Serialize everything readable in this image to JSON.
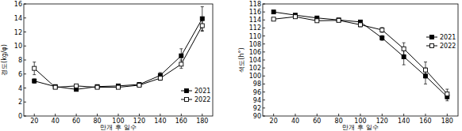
{
  "chart_data": [
    {
      "type": "line",
      "x_label": "만개 후 일수",
      "y_label": "경도(kg/φ)",
      "x": [
        20,
        40,
        60,
        80,
        100,
        120,
        140,
        160,
        180
      ],
      "xlim": [
        10,
        190
      ],
      "xticks": [
        20,
        40,
        60,
        80,
        100,
        120,
        140,
        160,
        180
      ],
      "ylim": [
        0,
        16
      ],
      "yticks": [
        0,
        2,
        4,
        6,
        8,
        10,
        12,
        14,
        16
      ],
      "legend": "lower right",
      "series": [
        {
          "name": "2021",
          "color": "#000000",
          "marker": "square",
          "line_style": "solid",
          "values": [
            5.0,
            4.2,
            3.8,
            4.2,
            4.3,
            4.5,
            5.8,
            8.6,
            13.9
          ],
          "errors": [
            0.3,
            0.2,
            0.2,
            0.2,
            0.2,
            0.2,
            0.4,
            1.0,
            1.7
          ]
        },
        {
          "name": "2022",
          "color": "#000000",
          "marker": "open_square",
          "line_style": "solid",
          "values": [
            6.8,
            4.1,
            4.3,
            4.1,
            4.1,
            4.4,
            5.4,
            7.4,
            12.9
          ],
          "errors": [
            0.9,
            0.2,
            0.2,
            0.2,
            0.2,
            0.2,
            0.3,
            0.6,
            0.8
          ]
        }
      ]
    },
    {
      "type": "line",
      "x_label": "만개 후 일수",
      "y_label": "색도(h°)",
      "x": [
        20,
        40,
        60,
        80,
        100,
        120,
        140,
        160,
        180
      ],
      "xlim": [
        10,
        190
      ],
      "xticks": [
        20,
        40,
        60,
        80,
        100,
        120,
        140,
        160,
        180
      ],
      "ylim": [
        90,
        118
      ],
      "yticks": [
        90,
        92,
        94,
        96,
        98,
        100,
        102,
        104,
        106,
        108,
        110,
        112,
        114,
        116,
        118
      ],
      "legend": "upper right",
      "series": [
        {
          "name": "2021",
          "color": "#000000",
          "marker": "square",
          "line_style": "solid",
          "values": [
            116.0,
            115.2,
            114.5,
            114.0,
            113.5,
            109.5,
            104.8,
            100.0,
            94.8
          ],
          "errors": [
            0.3,
            0.3,
            0.3,
            0.3,
            0.3,
            0.6,
            2.0,
            2.0,
            1.0
          ]
        },
        {
          "name": "2022",
          "color": "#000000",
          "marker": "open_square",
          "line_style": "solid",
          "values": [
            114.2,
            114.8,
            113.8,
            113.9,
            112.8,
            111.5,
            106.8,
            101.5,
            95.5
          ],
          "errors": [
            0.3,
            0.3,
            0.3,
            0.3,
            0.5,
            0.6,
            1.5,
            2.0,
            1.2
          ]
        }
      ]
    }
  ]
}
